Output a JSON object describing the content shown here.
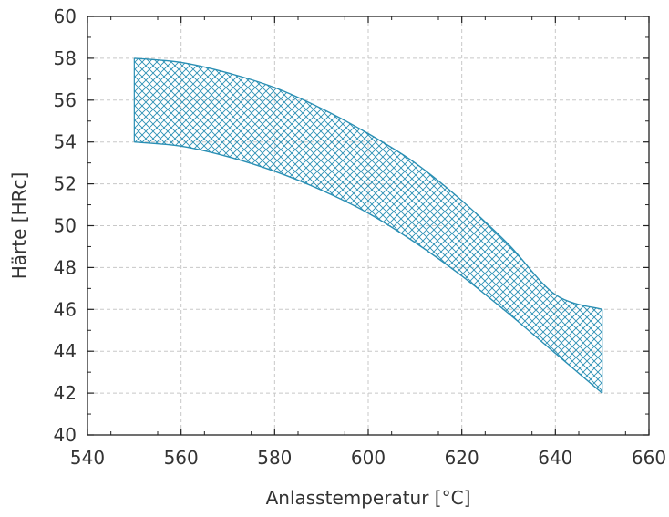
{
  "chart_data": {
    "type": "area",
    "title": "",
    "xlabel": "Anlasstemperatur [°C]",
    "ylabel": "Härte [HRc]",
    "xlim": [
      540,
      660
    ],
    "ylim": [
      40,
      60
    ],
    "xticks": [
      540,
      560,
      580,
      600,
      620,
      640,
      660
    ],
    "yticks": [
      40,
      42,
      44,
      46,
      48,
      50,
      52,
      54,
      56,
      58,
      60
    ],
    "grid": true,
    "band": {
      "fill_pattern": "crosshatch",
      "color": "#2a8fb4",
      "x": [
        550,
        560,
        570,
        580,
        590,
        600,
        610,
        620,
        630,
        640,
        650
      ],
      "upper": [
        58.0,
        57.8,
        57.3,
        56.6,
        55.6,
        54.4,
        53.0,
        51.2,
        49.1,
        46.7,
        46.0
      ],
      "lower": [
        54.0,
        53.8,
        53.3,
        52.6,
        51.7,
        50.6,
        49.2,
        47.6,
        45.8,
        43.9,
        42.0
      ]
    }
  }
}
